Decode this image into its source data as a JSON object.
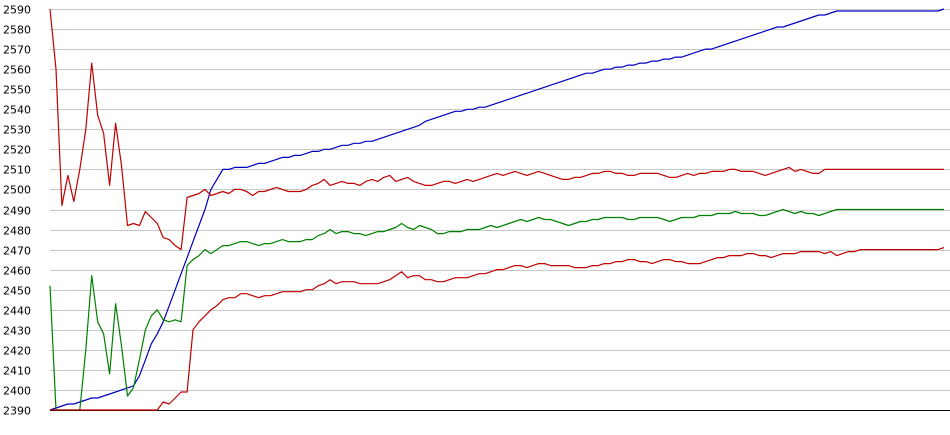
{
  "chart_data": {
    "type": "line",
    "title": "",
    "xlabel": "",
    "ylabel": "",
    "ylim": [
      2390,
      2590
    ],
    "grid": true,
    "legend": "none",
    "y_ticks": [
      2390,
      2400,
      2410,
      2420,
      2430,
      2440,
      2450,
      2460,
      2470,
      2480,
      2490,
      2500,
      2510,
      2520,
      2530,
      2540,
      2550,
      2560,
      2570,
      2580,
      2590
    ],
    "x": [
      0,
      1,
      2,
      3,
      4,
      5,
      6,
      7,
      8,
      9,
      10,
      11,
      12,
      13,
      14,
      15,
      16,
      17,
      18,
      19,
      20,
      21,
      22,
      23,
      24,
      25,
      26,
      27,
      28,
      29,
      30,
      31,
      32,
      33,
      34,
      35,
      36,
      37,
      38,
      39,
      40,
      41,
      42,
      43,
      44,
      45,
      46,
      47,
      48,
      49,
      50,
      51,
      52,
      53,
      54,
      55,
      56,
      57,
      58,
      59,
      60,
      61,
      62,
      63,
      64,
      65,
      66,
      67,
      68,
      69,
      70,
      71,
      72,
      73,
      74,
      75,
      76,
      77,
      78,
      79,
      80,
      81,
      82,
      83,
      84,
      85,
      86,
      87,
      88,
      89,
      90,
      91,
      92,
      93,
      94,
      95,
      96,
      97,
      98,
      99,
      100,
      101,
      102,
      103,
      104,
      105,
      106,
      107,
      108,
      109,
      110,
      111,
      112,
      113,
      114,
      115,
      116,
      117,
      118,
      119,
      120,
      121,
      122,
      123,
      124,
      125,
      126,
      127,
      128,
      129,
      130,
      131,
      132,
      133,
      134,
      135,
      136,
      137,
      138,
      139,
      140,
      141,
      142,
      143,
      144,
      145,
      146,
      147,
      148,
      149,
      150
    ],
    "series": [
      {
        "color": "#0000c0",
        "values": [
          2390,
          2391,
          2392,
          2393,
          2393,
          2394,
          2395,
          2396,
          2396,
          2397,
          2398,
          2399,
          2400,
          2401,
          2402,
          2407,
          2415,
          2423,
          2428,
          2434,
          2442,
          2450,
          2458,
          2466,
          2474,
          2482,
          2490,
          2500,
          2505,
          2510,
          2510,
          2511,
          2511,
          2511,
          2512,
          2513,
          2513,
          2514,
          2515,
          2516,
          2516,
          2517,
          2517,
          2518,
          2519,
          2519,
          2520,
          2520,
          2521,
          2522,
          2522,
          2523,
          2523,
          2524,
          2524,
          2525,
          2526,
          2527,
          2528,
          2529,
          2530,
          2531,
          2532,
          2534,
          2535,
          2536,
          2537,
          2538,
          2539,
          2539,
          2540,
          2540,
          2541,
          2541,
          2542,
          2543,
          2544,
          2545,
          2546,
          2547,
          2548,
          2549,
          2550,
          2551,
          2552,
          2553,
          2554,
          2555,
          2556,
          2557,
          2558,
          2558,
          2559,
          2560,
          2560,
          2561,
          2561,
          2562,
          2562,
          2563,
          2563,
          2564,
          2564,
          2565,
          2565,
          2566,
          2566,
          2567,
          2568,
          2569,
          2570,
          2570,
          2571,
          2572,
          2573,
          2574,
          2575,
          2576,
          2577,
          2578,
          2579,
          2580,
          2581,
          2581,
          2582,
          2583,
          2584,
          2585,
          2586,
          2587,
          2587,
          2588,
          2589,
          2589,
          2589,
          2589,
          2589,
          2589,
          2589,
          2589,
          2589,
          2589,
          2589,
          2589,
          2589,
          2589,
          2589,
          2589,
          2589,
          2589,
          2590
        ]
      },
      {
        "color": "#c00000",
        "values": [
          2590,
          2560,
          2492,
          2507,
          2494,
          2510,
          2530,
          2563,
          2537,
          2528,
          2502,
          2533,
          2512,
          2482,
          2483,
          2482,
          2489,
          2486,
          2483,
          2476,
          2475,
          2472,
          2470,
          2496,
          2497,
          2498,
          2500,
          2497,
          2498,
          2499,
          2498,
          2500,
          2500,
          2499,
          2497,
          2499,
          2499,
          2500,
          2501,
          2500,
          2499,
          2499,
          2499,
          2500,
          2502,
          2503,
          2505,
          2502,
          2503,
          2504,
          2503,
          2503,
          2502,
          2504,
          2505,
          2504,
          2506,
          2507,
          2504,
          2505,
          2506,
          2504,
          2503,
          2502,
          2502,
          2503,
          2504,
          2504,
          2503,
          2504,
          2505,
          2504,
          2505,
          2506,
          2507,
          2508,
          2507,
          2508,
          2509,
          2508,
          2507,
          2508,
          2509,
          2508,
          2507,
          2506,
          2505,
          2505,
          2506,
          2506,
          2507,
          2508,
          2508,
          2509,
          2509,
          2508,
          2508,
          2507,
          2507,
          2508,
          2508,
          2508,
          2508,
          2507,
          2506,
          2506,
          2507,
          2508,
          2507,
          2508,
          2508,
          2509,
          2509,
          2509,
          2510,
          2510,
          2509,
          2509,
          2509,
          2508,
          2507,
          2508,
          2509,
          2510,
          2511,
          2509,
          2510,
          2509,
          2508,
          2508,
          2510,
          2510,
          2510,
          2510,
          2510,
          2510,
          2510,
          2510,
          2510,
          2510,
          2510,
          2510,
          2510,
          2510,
          2510,
          2510,
          2510,
          2510,
          2510,
          2510,
          2510
        ]
      },
      {
        "color": "#008000",
        "values": [
          2452,
          2390,
          2390,
          2390,
          2390,
          2390,
          2420,
          2457,
          2434,
          2428,
          2408,
          2443,
          2422,
          2397,
          2401,
          2415,
          2430,
          2437,
          2440,
          2435,
          2434,
          2435,
          2434,
          2462,
          2465,
          2467,
          2470,
          2468,
          2470,
          2472,
          2472,
          2473,
          2474,
          2474,
          2473,
          2472,
          2473,
          2473,
          2474,
          2475,
          2474,
          2474,
          2474,
          2475,
          2475,
          2477,
          2478,
          2480,
          2478,
          2479,
          2479,
          2478,
          2478,
          2477,
          2478,
          2479,
          2479,
          2480,
          2481,
          2483,
          2481,
          2480,
          2482,
          2481,
          2480,
          2478,
          2478,
          2479,
          2479,
          2479,
          2480,
          2480,
          2480,
          2481,
          2482,
          2481,
          2482,
          2483,
          2484,
          2485,
          2484,
          2485,
          2486,
          2485,
          2485,
          2484,
          2483,
          2482,
          2483,
          2484,
          2484,
          2485,
          2485,
          2486,
          2486,
          2486,
          2486,
          2485,
          2485,
          2486,
          2486,
          2486,
          2486,
          2485,
          2484,
          2485,
          2486,
          2486,
          2486,
          2487,
          2487,
          2487,
          2488,
          2488,
          2488,
          2489,
          2488,
          2488,
          2488,
          2487,
          2487,
          2488,
          2489,
          2490,
          2489,
          2488,
          2489,
          2488,
          2488,
          2487,
          2488,
          2489,
          2490,
          2490,
          2490,
          2490,
          2490,
          2490,
          2490,
          2490,
          2490,
          2490,
          2490,
          2490,
          2490,
          2490,
          2490,
          2490,
          2490,
          2490,
          2490
        ]
      },
      {
        "color": "#c00000",
        "values": [
          2390,
          2390,
          2390,
          2390,
          2390,
          2390,
          2390,
          2390,
          2390,
          2390,
          2390,
          2390,
          2390,
          2390,
          2390,
          2390,
          2390,
          2390,
          2390,
          2394,
          2393,
          2396,
          2399,
          2399,
          2430,
          2434,
          2437,
          2440,
          2442,
          2445,
          2446,
          2446,
          2448,
          2448,
          2447,
          2446,
          2447,
          2447,
          2448,
          2449,
          2449,
          2449,
          2449,
          2450,
          2450,
          2452,
          2453,
          2455,
          2453,
          2454,
          2454,
          2454,
          2453,
          2453,
          2453,
          2453,
          2454,
          2455,
          2457,
          2459,
          2456,
          2457,
          2457,
          2455,
          2455,
          2454,
          2454,
          2455,
          2456,
          2456,
          2456,
          2457,
          2458,
          2458,
          2459,
          2460,
          2460,
          2461,
          2462,
          2462,
          2461,
          2462,
          2463,
          2463,
          2462,
          2462,
          2462,
          2462,
          2461,
          2461,
          2461,
          2462,
          2462,
          2463,
          2463,
          2464,
          2464,
          2465,
          2465,
          2464,
          2464,
          2463,
          2464,
          2465,
          2465,
          2464,
          2464,
          2463,
          2463,
          2463,
          2464,
          2465,
          2466,
          2466,
          2467,
          2467,
          2467,
          2468,
          2468,
          2467,
          2467,
          2466,
          2467,
          2468,
          2468,
          2468,
          2469,
          2469,
          2469,
          2469,
          2468,
          2469,
          2467,
          2468,
          2469,
          2469,
          2470,
          2470,
          2470,
          2470,
          2470,
          2470,
          2470,
          2470,
          2470,
          2470,
          2470,
          2470,
          2470,
          2470,
          2471
        ]
      }
    ]
  }
}
